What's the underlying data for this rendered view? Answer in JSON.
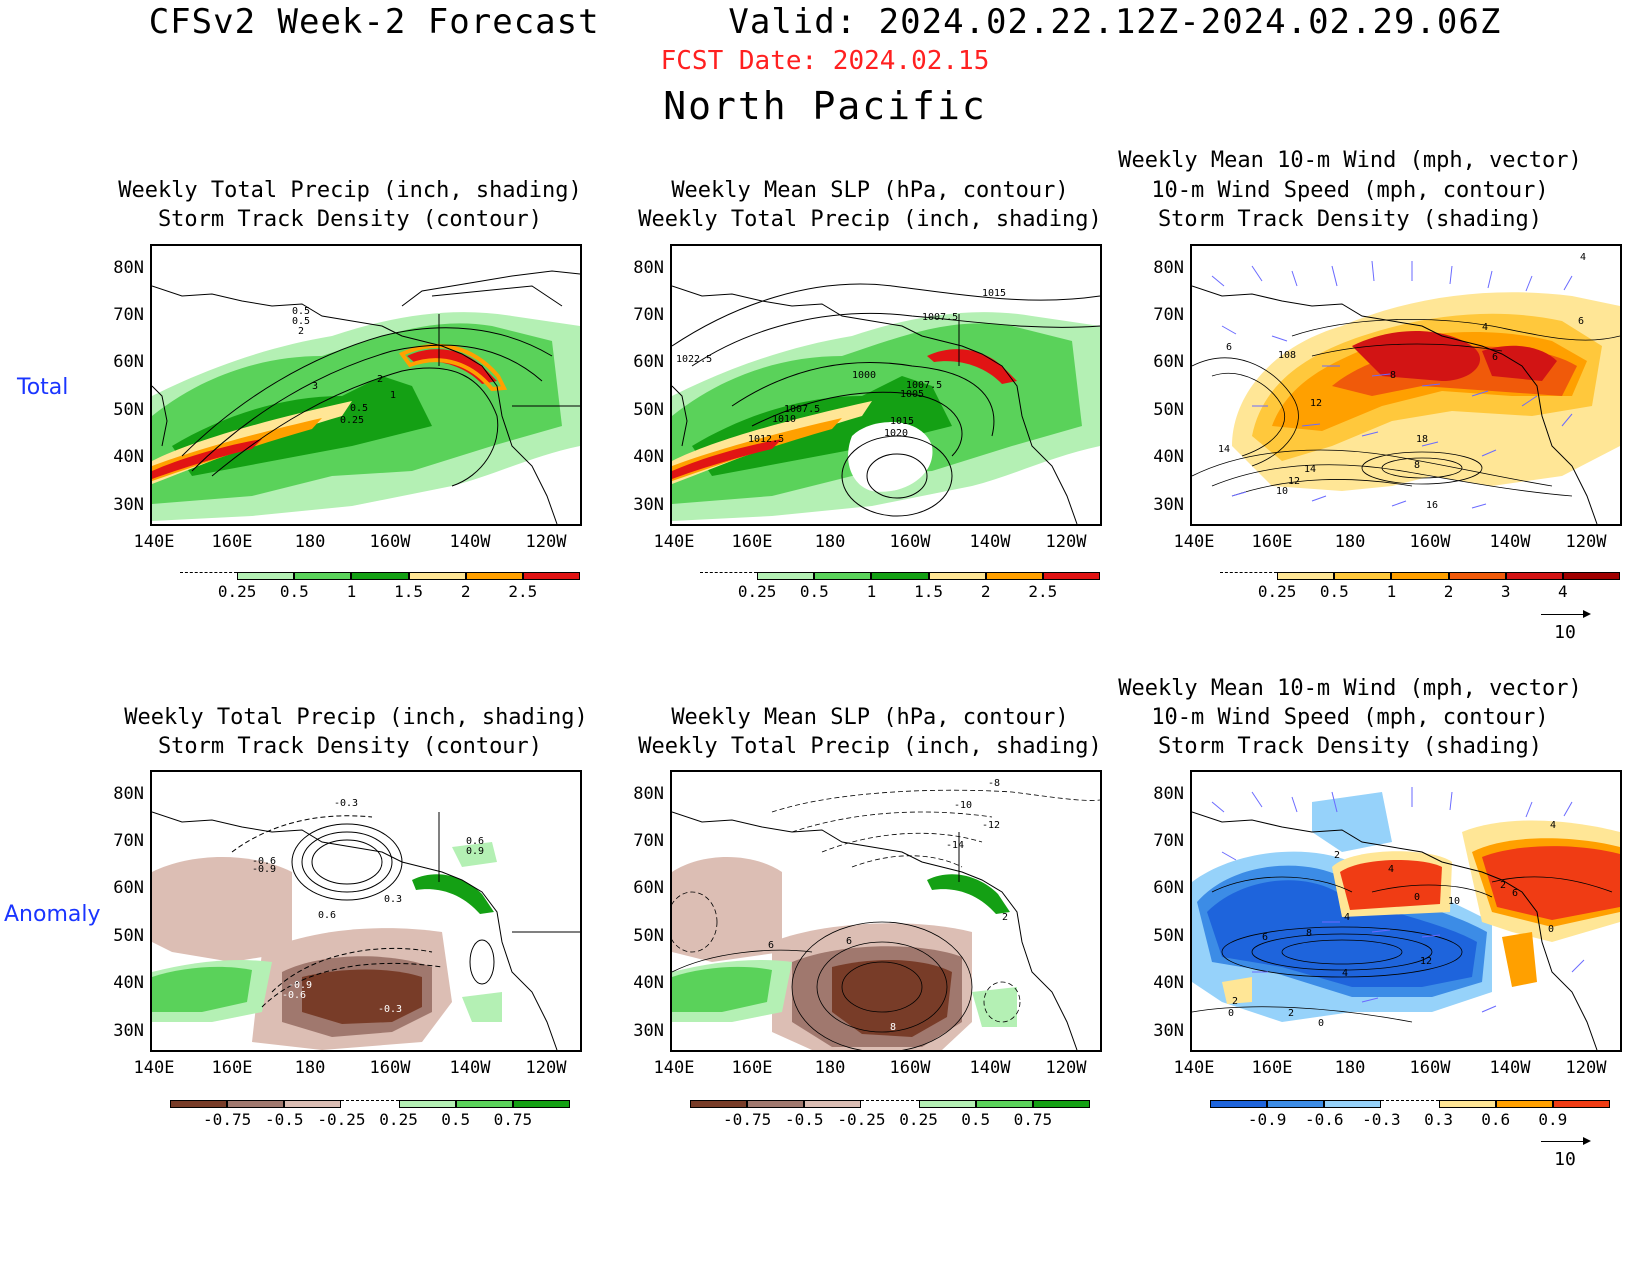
{
  "header": {
    "title_line": "CFSv2 Week-2 Forecast      Valid: 2024.02.22.12Z-2024.02.29.06Z",
    "fcst_date": "FCST Date: 2024.02.15",
    "region": "North Pacific"
  },
  "rows": {
    "total_label": "Total",
    "anomaly_label": "Anomaly"
  },
  "axes": {
    "lat_labels": [
      "80N",
      "70N",
      "60N",
      "50N",
      "40N",
      "30N"
    ],
    "lon_labels": [
      "140E",
      "160E",
      "180",
      "160W",
      "140W",
      "120W"
    ]
  },
  "panels": {
    "p1": {
      "title1": "Weekly Total Precip (inch, shading)",
      "title2": "Storm Track Density (contour)",
      "contour_labels": [
        "0.5",
        "0.5",
        "2",
        "3",
        "2",
        "1",
        "0.5",
        "0.25"
      ]
    },
    "p2": {
      "title1": "Weekly Mean SLP (hPa, contour)",
      "title2": "Weekly Total Precip (inch, shading)",
      "contour_labels": [
        "1015",
        "1007.5",
        "1022.5",
        "1000",
        "1007.5",
        "1005",
        "1007.5",
        "1010",
        "1015",
        "1020",
        "1012.5"
      ]
    },
    "p3": {
      "title0": "Weekly Mean 10-m Wind (mph, vector)",
      "title1": "10-m Wind Speed (mph, contour)",
      "title2": "Storm Track Density (shading)",
      "contour_labels": [
        "4",
        "6",
        "4",
        "6",
        "10",
        "8",
        "8",
        "6",
        "12",
        "14",
        "14",
        "12",
        "10",
        "18",
        "8",
        "16"
      ]
    },
    "p4": {
      "title1": "Weekly Total Precip (inch, shading)",
      "title2": "Storm Track Density (contour)",
      "contour_labels": [
        "-0.3",
        "-0.6",
        "-0.9",
        "0.6",
        "0.9",
        "0.3",
        "0.6",
        "-0.9",
        "-0.6",
        "-0.3"
      ]
    },
    "p5": {
      "title1": "Weekly Mean SLP (hPa, contour)",
      "title2": "Weekly Total Precip (inch, shading)",
      "contour_labels": [
        "-8",
        "-10",
        "-12",
        "-14",
        "2",
        "6",
        "6",
        "8"
      ]
    },
    "p6": {
      "title0": "Weekly Mean 10-m Wind (mph, vector)",
      "title1": "10-m Wind Speed (mph, contour)",
      "title2": "Storm Track Density (shading)",
      "contour_labels": [
        "4",
        "2",
        "4",
        "0",
        "10",
        "2",
        "6",
        "0",
        "4",
        "8",
        "6",
        "12",
        "4",
        "2",
        "0",
        "2",
        "0"
      ]
    }
  },
  "colorbars": {
    "precip": {
      "labels": [
        "0.25",
        "0.5",
        "1",
        "1.5",
        "2",
        "2.5"
      ],
      "colors": [
        "#ffffff",
        "#b4f0b4",
        "#5ad25a",
        "#14a014",
        "#ffe696",
        "#ffa000",
        "#e11414"
      ]
    },
    "storm": {
      "labels": [
        "0.25",
        "0.5",
        "1",
        "2",
        "3",
        "4"
      ],
      "colors": [
        "#ffffff",
        "#ffe696",
        "#ffc83c",
        "#ffa000",
        "#f05a0a",
        "#d21414",
        "#a00000"
      ]
    },
    "precip_anom": {
      "labels": [
        "-0.75",
        "-0.5",
        "-0.25",
        "0.25",
        "0.5",
        "0.75"
      ],
      "colors": [
        "#783c28",
        "#a0786e",
        "#dcbeb4",
        "#ffffff",
        "#b4f0b4",
        "#5ad25a",
        "#14a014"
      ]
    },
    "storm_anom": {
      "labels": [
        "-0.9",
        "-0.6",
        "-0.3",
        "0.3",
        "0.6",
        "0.9"
      ],
      "colors": [
        "#1e64dc",
        "#3c8ce6",
        "#96d2fa",
        "#ffffff",
        "#ffe696",
        "#ffa000",
        "#f03c14"
      ]
    }
  },
  "vector_key": {
    "label": "10"
  }
}
